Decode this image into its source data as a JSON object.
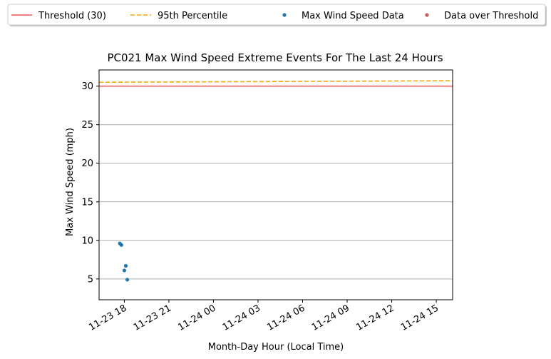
{
  "chart_data": {
    "type": "scatter",
    "title": "PC021 Max Wind Speed Extreme Events For The Last 24 Hours",
    "xlabel": "Month-Day Hour (Local Time)",
    "ylabel": "Max Wind Speed (mph)",
    "x_range": [
      "2023-11-23 16:18",
      "2023-11-24 16:06"
    ],
    "ylim": [
      2.3,
      32.1
    ],
    "x_ticks": [
      {
        "t": "2023-11-23 18:00",
        "label": "11-23 18"
      },
      {
        "t": "2023-11-23 21:00",
        "label": "11-23 21"
      },
      {
        "t": "2023-11-24 00:00",
        "label": "11-24 00"
      },
      {
        "t": "2023-11-24 03:00",
        "label": "11-24 03"
      },
      {
        "t": "2023-11-24 06:00",
        "label": "11-24 06"
      },
      {
        "t": "2023-11-24 09:00",
        "label": "11-24 09"
      },
      {
        "t": "2023-11-24 12:00",
        "label": "11-24 12"
      },
      {
        "t": "2023-11-24 15:00",
        "label": "11-24 15"
      }
    ],
    "y_ticks": [
      5,
      10,
      15,
      20,
      25,
      30
    ],
    "grid": "horizontal",
    "legend_position": "top, outside plot",
    "series": [
      {
        "name": "Threshold (30)",
        "kind": "hline",
        "values": [
          {
            "x": "2023-11-23 16:18",
            "y": 30
          },
          {
            "x": "2023-11-24 16:06",
            "y": 30
          }
        ],
        "color": "#f08080"
      },
      {
        "name": "95th Percentile",
        "kind": "dashed-line",
        "values": [
          {
            "x": "2023-11-23 16:18",
            "y": 30.5
          },
          {
            "x": "2023-11-24 16:06",
            "y": 30.7
          }
        ],
        "color": "#ffa500"
      },
      {
        "name": "Max Wind Speed Data",
        "kind": "points",
        "values": [
          {
            "x": "2023-11-23 17:42",
            "y": 9.6
          },
          {
            "x": "2023-11-23 17:48",
            "y": 9.4
          },
          {
            "x": "2023-11-23 18:00",
            "y": 6.1
          },
          {
            "x": "2023-11-23 18:06",
            "y": 6.7
          },
          {
            "x": "2023-11-23 18:12",
            "y": 4.9
          }
        ],
        "color": "#1f77b4"
      },
      {
        "name": "Data over Threshold",
        "kind": "points",
        "values": [],
        "color": "#cd5c5c"
      }
    ]
  }
}
